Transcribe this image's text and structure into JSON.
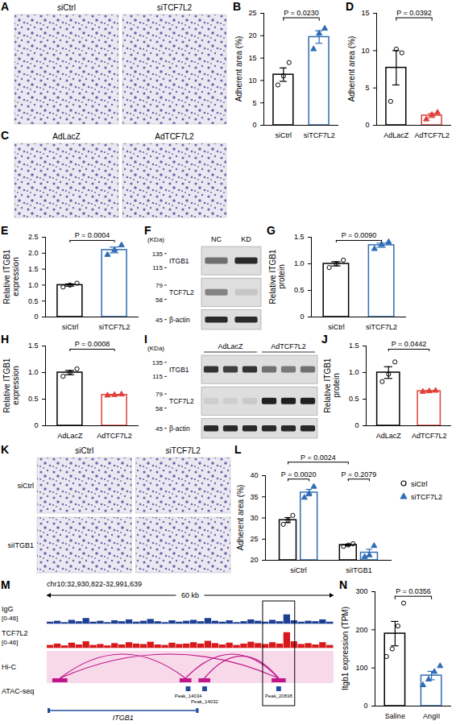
{
  "chart_data": [
    {
      "panel_label": "B",
      "type": "bar",
      "y_label": "Adherent area (%)",
      "categories": [
        "siCtrl",
        "siTCF7L2"
      ],
      "series": [
        {
          "name": "siCtrl",
          "color": "#000000",
          "marker": "circle",
          "values": [
            11.3,
            null
          ],
          "errors": [
            1.5,
            null
          ],
          "points": [
            [
              9,
              11,
              14
            ],
            null
          ]
        },
        {
          "name": "siTCF7L2",
          "color": "#2f6db5",
          "marker": "triangle",
          "values": [
            null,
            19.7
          ],
          "errors": [
            null,
            1.4
          ],
          "points": [
            null,
            [
              17,
              20.5,
              21.6
            ]
          ]
        }
      ],
      "ylim": [
        0,
        25
      ],
      "yticks": [
        0,
        5,
        10,
        15,
        20,
        25
      ],
      "p_values": [
        {
          "label": "P = 0.0230",
          "from": [
            0,
            0
          ],
          "to": [
            1,
            1
          ]
        }
      ]
    },
    {
      "panel_label": "D",
      "type": "bar",
      "y_label": "Adherent area (%)",
      "categories": [
        "AdLacZ",
        "AdTCF7L2"
      ],
      "series": [
        {
          "name": "AdLacZ",
          "color": "#000000",
          "marker": "circle",
          "values": [
            7.7,
            null
          ],
          "errors": [
            2.3,
            null
          ],
          "points": [
            [
              3.2,
              10.2,
              9.7
            ],
            null
          ]
        },
        {
          "name": "AdTCF7L2",
          "color": "#e0413a",
          "marker": "triangle",
          "values": [
            null,
            1.3
          ],
          "errors": [
            null,
            0.27
          ],
          "points": [
            null,
            [
              0.8,
              1.4,
              1.7
            ]
          ]
        }
      ],
      "ylim": [
        0,
        15
      ],
      "yticks": [
        0,
        5,
        10,
        15
      ],
      "p_values": [
        {
          "label": "P = 0.0392",
          "from": [
            0,
            0
          ],
          "to": [
            1,
            1
          ]
        }
      ]
    },
    {
      "panel_label": "E",
      "type": "bar",
      "y_label": "Relative ITGB1 expression",
      "categories": [
        "siCtrl",
        "siTCF7L2"
      ],
      "series": [
        {
          "name": "siCtrl",
          "color": "#000000",
          "marker": "circle",
          "values": [
            1.0,
            null
          ],
          "errors": [
            0.035,
            null
          ],
          "points": [
            [
              0.94,
              1.0,
              1.06
            ],
            null
          ]
        },
        {
          "name": "siTCF7L2",
          "color": "#2f6db5",
          "marker": "triangle",
          "values": [
            null,
            2.1
          ],
          "errors": [
            null,
            0.09
          ],
          "points": [
            null,
            [
              1.95,
              2.1,
              2.25
            ]
          ]
        }
      ],
      "ylim": [
        0,
        2.5
      ],
      "yticks": [
        0,
        0.5,
        {
          "value": 1,
          "label": "1.0"
        },
        1.5,
        {
          "value": 2,
          "label": "2.0"
        },
        2.5
      ],
      "p_values": [
        {
          "label": "P = 0.0004",
          "from": [
            0,
            0
          ],
          "to": [
            1,
            1
          ]
        }
      ]
    },
    {
      "panel_label": "G",
      "type": "bar",
      "y_label": "Relative ITGB1 protein",
      "categories": [
        "siCtrl",
        "siTCF7L2"
      ],
      "series": [
        {
          "name": "siCtrl",
          "color": "#000000",
          "marker": "circle",
          "values": [
            1.0,
            null
          ],
          "errors": [
            0.04,
            null
          ],
          "points": [
            [
              0.93,
              1.0,
              1.07
            ],
            null
          ]
        },
        {
          "name": "siTCF7L2",
          "color": "#2f6db5",
          "marker": "triangle",
          "values": [
            null,
            1.35
          ],
          "errors": [
            null,
            0.04
          ],
          "points": [
            null,
            [
              1.28,
              1.36,
              1.41
            ]
          ]
        }
      ],
      "ylim": [
        0,
        1.5
      ],
      "yticks": [
        0,
        0.5,
        {
          "value": 1,
          "label": "1.0"
        },
        1.5
      ],
      "p_values": [
        {
          "label": "P = 0.0090",
          "from": [
            0,
            0
          ],
          "to": [
            1,
            1
          ]
        }
      ]
    },
    {
      "panel_label": "H",
      "type": "bar",
      "y_label": "Relative ITGB1 expression",
      "categories": [
        "AdLacZ",
        "AdTCF7L2"
      ],
      "series": [
        {
          "name": "AdLacZ",
          "color": "#000000",
          "marker": "circle",
          "values": [
            1.0,
            null
          ],
          "errors": [
            0.04,
            null
          ],
          "points": [
            [
              0.93,
              1.0,
              1.07
            ],
            null
          ]
        },
        {
          "name": "AdTCF7L2",
          "color": "#e0413a",
          "marker": "triangle",
          "values": [
            null,
            0.58
          ],
          "errors": [
            null,
            0.006
          ],
          "points": [
            null,
            [
              0.57,
              0.58,
              0.59
            ]
          ]
        }
      ],
      "ylim": [
        0,
        1.5
      ],
      "yticks": [
        0,
        0.5,
        {
          "value": 1,
          "label": "1.0"
        },
        1.5
      ],
      "p_values": [
        {
          "label": "P = 0.0008",
          "from": [
            0,
            0
          ],
          "to": [
            1,
            1
          ]
        }
      ]
    },
    {
      "panel_label": "J",
      "type": "bar",
      "y_label": "Relative ITGB1 protein",
      "categories": [
        "AdLacZ",
        "AdTCF7L2"
      ],
      "series": [
        {
          "name": "AdLacZ",
          "color": "#000000",
          "marker": "circle",
          "values": [
            1.0,
            null
          ],
          "errors": [
            0.11,
            null
          ],
          "points": [
            [
              0.83,
              0.97,
              1.2
            ],
            null
          ]
        },
        {
          "name": "AdTCF7L2",
          "color": "#e0413a",
          "marker": "triangle",
          "values": [
            null,
            0.65
          ],
          "errors": [
            null,
            0.006
          ],
          "points": [
            null,
            [
              0.64,
              0.65,
              0.66
            ]
          ]
        }
      ],
      "ylim": [
        0,
        1.5
      ],
      "yticks": [
        0,
        0.5,
        {
          "value": 1,
          "label": "1.0"
        },
        1.5
      ],
      "p_values": [
        {
          "label": "P = 0.0442",
          "from": [
            0,
            0
          ],
          "to": [
            1,
            1
          ]
        }
      ]
    },
    {
      "panel_label": "L",
      "type": "bar",
      "legend": "right",
      "y_label": "Adherent area (%)",
      "categories": [
        "siCtrl",
        "siITGB1"
      ],
      "series": [
        {
          "name": "siCtrl",
          "color": "#000000",
          "marker": "circle",
          "values": [
            29.5,
            23.6
          ],
          "errors": [
            0.6,
            0.17
          ],
          "points": [
            [
              28.5,
              29.4,
              30.6
            ],
            [
              23.3,
              23.6,
              23.9
            ]
          ]
        },
        {
          "name": "siTCF7L2",
          "color": "#2f6db5",
          "marker": "triangle",
          "values": [
            36.0,
            21.8
          ],
          "errors": [
            0.76,
            0.8
          ],
          "points": [
            [
              34.8,
              35.8,
              37.4
            ],
            [
              20.8,
              21.2,
              23.4
            ]
          ]
        }
      ],
      "ylim": [
        20,
        40
      ],
      "yticks": [
        20,
        25,
        30,
        35,
        40
      ],
      "p_values": [
        {
          "label": "P = 0.0020",
          "from": [
            0,
            0
          ],
          "to": [
            0,
            1
          ]
        },
        {
          "label": "P = 0.2079",
          "from": [
            1,
            0
          ],
          "to": [
            1,
            1
          ]
        },
        {
          "label": "P = 0.0024",
          "from": [
            0,
            0
          ],
          "to": [
            1,
            0
          ]
        }
      ]
    },
    {
      "panel_label": "N",
      "type": "bar",
      "y_label": "Itgb1 expression (TPM)",
      "categories": [
        "Saline",
        "AngII"
      ],
      "series": [
        {
          "name": "Saline",
          "color": "#000000",
          "marker": "circle",
          "values": [
            190,
            null
          ],
          "errors": [
            32,
            null
          ],
          "points": [
            [
              130,
              150,
              210,
              270
            ],
            null
          ]
        },
        {
          "name": "AngII",
          "color": "#2f6db5",
          "marker": "triangle",
          "values": [
            null,
            80
          ],
          "errors": [
            null,
            11
          ],
          "points": [
            null,
            [
              55,
              70,
              90,
              105
            ]
          ]
        }
      ],
      "ylim": [
        0,
        300
      ],
      "yticks": [
        0,
        100,
        200,
        300
      ],
      "p_values": [
        {
          "label": "P = 0.0356",
          "from": [
            0,
            0
          ],
          "to": [
            1,
            1
          ]
        }
      ]
    }
  ],
  "image_panels": [
    {
      "panel_label": "A",
      "columns": [
        "siCtrl",
        "siTCF7L2"
      ]
    },
    {
      "panel_label": "C",
      "columns": [
        "AdLacZ",
        "AdTCF7L2"
      ]
    },
    {
      "panel_label": "K",
      "columns": [
        "siCtrl",
        "siTCF7L2"
      ],
      "rows": [
        "siCtrl",
        "siITGB1"
      ]
    }
  ],
  "blots": [
    {
      "panel_label": "F",
      "unit": "(KDa)",
      "lanes": [
        "NC",
        "KD"
      ],
      "rows": [
        {
          "name": "ITGB1",
          "markers": [
            135,
            115
          ],
          "intensity": [
            0.55,
            0.9
          ]
        },
        {
          "name": "TCF7L2",
          "markers": [
            79,
            58
          ],
          "intensity": [
            0.45,
            0.12
          ]
        },
        {
          "name": "β-actin",
          "markers": [
            45
          ],
          "intensity": [
            0.9,
            0.9
          ]
        }
      ]
    },
    {
      "panel_label": "I",
      "unit": "(KDa)",
      "groups": [
        "AdLacZ",
        "AdTCF7L2"
      ],
      "rows": [
        {
          "name": "ITGB1",
          "markers": [
            135,
            115
          ],
          "intensity": [
            0.85,
            0.8,
            0.85,
            0.55,
            0.5,
            0.55
          ]
        },
        {
          "name": "TCF7L2",
          "markers": [
            79,
            58
          ],
          "intensity": [
            0.08,
            0.08,
            0.1,
            0.95,
            0.95,
            0.95
          ]
        },
        {
          "name": "β-actin",
          "markers": [
            45
          ],
          "intensity": [
            0.9,
            0.9,
            0.9,
            0.9,
            0.9,
            0.9
          ]
        }
      ]
    }
  ],
  "genome_browser": {
    "panel_label": "M",
    "region": "chr10:32,930,822-32,991,639",
    "xlim": [
      32930822,
      32991639
    ],
    "scale_label": "60 kb",
    "tracks": [
      {
        "name": "IgG",
        "range_label": "[0-46]",
        "ylim": [
          0,
          46
        ],
        "color": "#1c3f94",
        "signal": [
          4,
          6,
          3,
          8,
          5,
          12,
          4,
          6,
          3,
          7,
          5,
          9,
          4,
          6,
          10,
          5,
          3,
          7,
          4,
          6,
          8,
          5,
          12,
          6,
          4,
          7,
          3,
          5,
          9,
          6,
          4,
          8,
          5,
          20,
          7,
          4,
          6,
          5,
          9,
          4
        ]
      },
      {
        "name": "TCF7L2",
        "range_label": "[0-46]",
        "ylim": [
          0,
          46
        ],
        "color": "#d7191c",
        "signal": [
          6,
          9,
          5,
          11,
          7,
          14,
          6,
          8,
          5,
          10,
          7,
          12,
          9,
          8,
          13,
          7,
          6,
          11,
          8,
          9,
          12,
          9,
          15,
          10,
          7,
          11,
          6,
          9,
          13,
          10,
          8,
          12,
          9,
          34,
          14,
          8,
          10,
          7,
          12,
          6
        ]
      }
    ],
    "hic": {
      "name": "Hi-C",
      "color": "#c0168a",
      "anchors": [
        [
          32932000,
          32935200
        ],
        [
          32959000,
          32961500
        ],
        [
          32963000,
          32965500
        ],
        [
          32978500,
          32981500
        ]
      ],
      "loops": [
        [
          0,
          1
        ],
        [
          0,
          3
        ],
        [
          1,
          3
        ],
        [
          2,
          3
        ]
      ]
    },
    "atac": {
      "name": "ATAC-seq",
      "color": "#1f4e9c",
      "peaks": [
        {
          "label": "Peak_14034",
          "start": 32960300,
          "end": 32961300
        },
        {
          "label": "Peak_14032",
          "start": 32963800,
          "end": 32964800
        },
        {
          "label": "Peak_20838",
          "start": 32979500,
          "end": 32980500
        }
      ]
    },
    "gene": {
      "name": "ITGB1",
      "start": 32931000,
      "end": 32963000
    },
    "highlight": [
      32976600,
      32983400
    ]
  }
}
